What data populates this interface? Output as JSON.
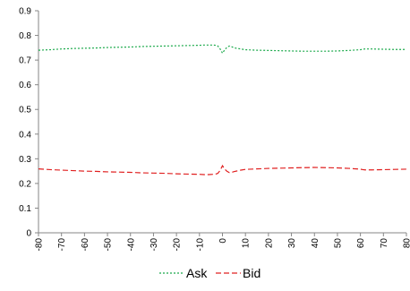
{
  "chart_data": {
    "type": "line",
    "x": [
      -80,
      -75,
      -70,
      -65,
      -60,
      -55,
      -50,
      -45,
      -40,
      -35,
      -30,
      -25,
      -20,
      -15,
      -10,
      -8,
      -6,
      -4,
      -3,
      -2,
      -1,
      0,
      1,
      2,
      3,
      4,
      5,
      6,
      8,
      10,
      15,
      20,
      25,
      30,
      35,
      40,
      45,
      50,
      55,
      60,
      61,
      62,
      65,
      70,
      75,
      80
    ],
    "series": [
      {
        "name": "Ask",
        "color": "#1aa94a",
        "dash": "2,2",
        "values": [
          0.74,
          0.742,
          0.745,
          0.747,
          0.748,
          0.749,
          0.751,
          0.752,
          0.753,
          0.755,
          0.756,
          0.757,
          0.758,
          0.759,
          0.76,
          0.761,
          0.761,
          0.761,
          0.76,
          0.757,
          0.745,
          0.728,
          0.742,
          0.752,
          0.757,
          0.754,
          0.75,
          0.748,
          0.745,
          0.742,
          0.74,
          0.739,
          0.738,
          0.737,
          0.736,
          0.736,
          0.736,
          0.737,
          0.739,
          0.742,
          0.744,
          0.745,
          0.745,
          0.744,
          0.743,
          0.743
        ]
      },
      {
        "name": "Bid",
        "color": "#e02020",
        "dash": "6,3",
        "values": [
          0.259,
          0.256,
          0.254,
          0.252,
          0.25,
          0.249,
          0.247,
          0.246,
          0.245,
          0.243,
          0.242,
          0.241,
          0.239,
          0.238,
          0.237,
          0.236,
          0.236,
          0.237,
          0.238,
          0.241,
          0.253,
          0.272,
          0.258,
          0.249,
          0.244,
          0.245,
          0.248,
          0.25,
          0.254,
          0.257,
          0.259,
          0.261,
          0.262,
          0.263,
          0.264,
          0.265,
          0.264,
          0.263,
          0.261,
          0.258,
          0.256,
          0.255,
          0.255,
          0.256,
          0.257,
          0.258
        ]
      }
    ],
    "xticks": [
      -80,
      -70,
      -60,
      -50,
      -40,
      -30,
      -20,
      -10,
      0,
      10,
      20,
      30,
      40,
      50,
      60,
      70,
      80
    ],
    "yticks": [
      0,
      0.1,
      0.2,
      0.3,
      0.4,
      0.5,
      0.6,
      0.7,
      0.8,
      0.9
    ],
    "ytick_labels": [
      "0",
      "0.1",
      "0.2",
      "0.3",
      "0.4",
      "0.5",
      "0.6",
      "0.7",
      "0.8",
      "0.9"
    ],
    "xlim": [
      -80,
      80
    ],
    "ylim": [
      0,
      0.9
    ],
    "grid": false,
    "legend_position": "bottom-center",
    "title": "",
    "xlabel": "",
    "ylabel": ""
  }
}
